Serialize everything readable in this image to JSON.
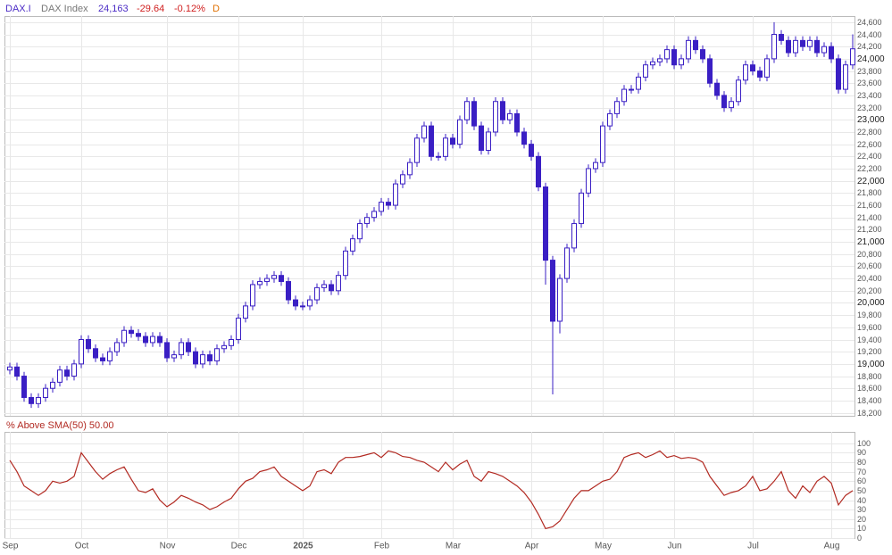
{
  "header": {
    "symbol": "DAX.I",
    "name": "DAX Index",
    "last": "24,163",
    "change": "-29.64",
    "change_pct": "-0.12%",
    "period": "D"
  },
  "chart_data": [
    {
      "type": "candlestick",
      "color": "#3a1fc4",
      "open": [
        18900,
        18950,
        18800,
        18450,
        18350,
        18450,
        18600,
        18700,
        18900,
        18800,
        19000,
        19400,
        19250,
        19100,
        19050,
        19200,
        19350,
        19550,
        19500,
        19450,
        19350,
        19450,
        19350,
        19100,
        19150,
        19350,
        19200,
        19000,
        19150,
        19050,
        19250,
        19300,
        19400,
        19750,
        19950,
        20300,
        20350,
        20400,
        20450,
        20350,
        20050,
        19950,
        19950,
        20050,
        20250,
        20300,
        20200,
        20450,
        20850,
        21050,
        21300,
        21400,
        21500,
        21650,
        21600,
        21950,
        22100,
        22300,
        22700,
        22900,
        22400,
        22400,
        22700,
        22600,
        23000,
        23300,
        22900,
        22500,
        22800,
        23300,
        23000,
        23100,
        22800,
        22600,
        22400,
        21900,
        20700,
        19700,
        20400,
        20900,
        21300,
        21800,
        22200,
        22300,
        22900,
        23100,
        23300,
        23500,
        23500,
        23700,
        23900,
        23950,
        24000,
        24150,
        23900,
        24000,
        24300,
        24150,
        24000,
        23600,
        23400,
        23200,
        23300,
        23650,
        23900,
        23800,
        23700,
        24000,
        24400,
        24300,
        24100,
        24300,
        24200,
        24300,
        24100,
        24200,
        24000,
        23500,
        23900
      ],
      "high": [
        19020,
        19020,
        18870,
        18520,
        18520,
        18670,
        18770,
        18970,
        18970,
        19070,
        19470,
        19470,
        19320,
        19170,
        19270,
        19420,
        19620,
        19620,
        19570,
        19520,
        19520,
        19520,
        19420,
        19220,
        19420,
        19420,
        19270,
        19220,
        19220,
        19320,
        19370,
        19470,
        19820,
        20020,
        20370,
        20420,
        20470,
        20520,
        20520,
        20420,
        20120,
        20020,
        20120,
        20320,
        20370,
        20370,
        20520,
        20920,
        21120,
        21370,
        21470,
        21570,
        21720,
        21720,
        22020,
        22170,
        22370,
        22770,
        22970,
        22970,
        22470,
        22770,
        22770,
        23070,
        23370,
        23370,
        22970,
        22870,
        23370,
        23370,
        23170,
        23170,
        22870,
        22670,
        22470,
        21970,
        20770,
        20470,
        20970,
        21370,
        21870,
        22270,
        22370,
        22970,
        23170,
        23370,
        23570,
        23570,
        23770,
        23970,
        24020,
        24070,
        24220,
        24220,
        24070,
        24370,
        24370,
        24220,
        24070,
        23670,
        23470,
        23370,
        23720,
        23970,
        23970,
        23870,
        24070,
        24600,
        24470,
        24370,
        24370,
        24370,
        24370,
        24370,
        24270,
        24270,
        24070,
        23970,
        24400
      ],
      "low": [
        18830,
        18730,
        18380,
        18280,
        18280,
        18380,
        18530,
        18630,
        18730,
        18730,
        18930,
        19180,
        19030,
        18980,
        18980,
        19130,
        19280,
        19430,
        19380,
        19280,
        19280,
        19280,
        19030,
        19030,
        19080,
        19130,
        18930,
        18930,
        18980,
        18980,
        19180,
        19230,
        19330,
        19680,
        19880,
        20230,
        20280,
        20330,
        20280,
        19980,
        19880,
        19880,
        19880,
        19980,
        20180,
        20130,
        20130,
        20380,
        20780,
        20980,
        21230,
        21330,
        21430,
        21530,
        21530,
        21880,
        22030,
        22230,
        22630,
        22330,
        22330,
        22330,
        22530,
        22530,
        22930,
        22830,
        22430,
        22430,
        22730,
        22930,
        22930,
        22730,
        22530,
        22330,
        21830,
        20300,
        18500,
        19500,
        20330,
        20830,
        21230,
        21730,
        22130,
        22230,
        22830,
        23030,
        23230,
        23430,
        23430,
        23630,
        23830,
        23880,
        23930,
        23830,
        23830,
        23930,
        24080,
        23930,
        23530,
        23330,
        23130,
        23130,
        23230,
        23580,
        23730,
        23630,
        23630,
        23930,
        24230,
        24030,
        24030,
        24130,
        24130,
        24030,
        24030,
        23930,
        23430,
        23430,
        23830
      ],
      "close": [
        18950,
        18800,
        18450,
        18350,
        18450,
        18600,
        18700,
        18900,
        18800,
        19000,
        19400,
        19250,
        19100,
        19050,
        19200,
        19350,
        19550,
        19500,
        19450,
        19350,
        19450,
        19350,
        19100,
        19150,
        19350,
        19200,
        19000,
        19150,
        19050,
        19250,
        19300,
        19400,
        19750,
        19950,
        20300,
        20350,
        20400,
        20450,
        20350,
        20050,
        19950,
        19950,
        20050,
        20250,
        20300,
        20200,
        20450,
        20850,
        21050,
        21300,
        21400,
        21500,
        21650,
        21600,
        21950,
        22100,
        22300,
        22700,
        22900,
        22400,
        22400,
        22700,
        22600,
        23000,
        23300,
        22900,
        22500,
        22800,
        23300,
        23000,
        23100,
        22800,
        22600,
        22400,
        21900,
        20700,
        19700,
        20400,
        20900,
        21300,
        21800,
        22200,
        22300,
        22900,
        23100,
        23300,
        23500,
        23500,
        23700,
        23900,
        23950,
        24000,
        24150,
        23900,
        24000,
        24300,
        24150,
        24000,
        23600,
        23400,
        23200,
        23300,
        23650,
        23900,
        23800,
        23700,
        24000,
        24400,
        24300,
        24100,
        24300,
        24200,
        24300,
        24100,
        24200,
        24000,
        23500,
        23900,
        24163
      ],
      "ylim": [
        18150,
        24700
      ],
      "yticks": [
        {
          "value": 18200,
          "label": "18,200"
        },
        {
          "value": 18400,
          "label": "18,400"
        },
        {
          "value": 18600,
          "label": "18,600"
        },
        {
          "value": 18800,
          "label": "18,800"
        },
        {
          "value": 19000,
          "label": "19,000"
        },
        {
          "value": 19200,
          "label": "19,200"
        },
        {
          "value": 19400,
          "label": "19,400"
        },
        {
          "value": 19600,
          "label": "19,600"
        },
        {
          "value": 19800,
          "label": "19,800"
        },
        {
          "value": 20000,
          "label": "20,000"
        },
        {
          "value": 20200,
          "label": "20,200"
        },
        {
          "value": 20400,
          "label": "20,400"
        },
        {
          "value": 20600,
          "label": "20,600"
        },
        {
          "value": 20800,
          "label": "20,800"
        },
        {
          "value": 21000,
          "label": "21,000"
        },
        {
          "value": 21200,
          "label": "21,200"
        },
        {
          "value": 21400,
          "label": "21,400"
        },
        {
          "value": 21600,
          "label": "21,600"
        },
        {
          "value": 21800,
          "label": "21,800"
        },
        {
          "value": 22000,
          "label": "22,000"
        },
        {
          "value": 22200,
          "label": "22,200"
        },
        {
          "value": 22400,
          "label": "22,400"
        },
        {
          "value": 22600,
          "label": "22,600"
        },
        {
          "value": 22800,
          "label": "22,800"
        },
        {
          "value": 23000,
          "label": "23,000"
        },
        {
          "value": 23200,
          "label": "23,200"
        },
        {
          "value": 23400,
          "label": "23,400"
        },
        {
          "value": 23600,
          "label": "23,600"
        },
        {
          "value": 23800,
          "label": "23,800"
        },
        {
          "value": 24000,
          "label": "24,000"
        },
        {
          "value": 24200,
          "label": "24,200"
        },
        {
          "value": 24400,
          "label": "24,400"
        },
        {
          "value": 24600,
          "label": "24,600"
        }
      ],
      "grid": true
    },
    {
      "type": "line",
      "title": "% Above SMA(50) 50.00",
      "color": "#b22a22",
      "categories": [
        "Sep",
        null,
        null,
        null,
        null,
        null,
        null,
        null,
        null,
        null,
        "Oct",
        null,
        null,
        null,
        null,
        null,
        null,
        null,
        null,
        null,
        null,
        null,
        "Nov",
        null,
        null,
        null,
        null,
        null,
        null,
        null,
        null,
        null,
        "Dec",
        null,
        null,
        null,
        null,
        null,
        null,
        null,
        null,
        "2025",
        null,
        null,
        null,
        null,
        null,
        null,
        null,
        null,
        null,
        null,
        "Feb",
        null,
        null,
        null,
        null,
        null,
        null,
        null,
        null,
        null,
        "Mar",
        null,
        null,
        null,
        null,
        null,
        null,
        null,
        null,
        null,
        null,
        "Apr",
        null,
        null,
        null,
        null,
        null,
        null,
        null,
        null,
        null,
        "May",
        null,
        null,
        null,
        null,
        null,
        null,
        null,
        null,
        null,
        "Jun",
        null,
        null,
        null,
        null,
        null,
        null,
        null,
        null,
        null,
        null,
        "Jul",
        null,
        null,
        null,
        null,
        null,
        null,
        null,
        null,
        null,
        null,
        "Aug",
        null,
        null,
        null
      ],
      "values": [
        82,
        70,
        55,
        50,
        45,
        50,
        60,
        58,
        60,
        65,
        90,
        80,
        70,
        62,
        68,
        72,
        75,
        62,
        50,
        48,
        52,
        40,
        33,
        38,
        45,
        42,
        38,
        35,
        30,
        33,
        38,
        42,
        52,
        60,
        63,
        70,
        72,
        75,
        65,
        60,
        55,
        50,
        55,
        70,
        72,
        68,
        80,
        85,
        85,
        86,
        88,
        90,
        85,
        92,
        90,
        86,
        85,
        82,
        80,
        75,
        70,
        80,
        72,
        78,
        82,
        65,
        60,
        70,
        68,
        65,
        60,
        55,
        48,
        38,
        25,
        10,
        12,
        18,
        30,
        42,
        50,
        50,
        55,
        60,
        62,
        70,
        85,
        88,
        90,
        85,
        88,
        92,
        85,
        87,
        84,
        85,
        84,
        80,
        65,
        55,
        45,
        48,
        50,
        55,
        65,
        50,
        52,
        60,
        70,
        50,
        42,
        55,
        48,
        60,
        65,
        58,
        35,
        45,
        50
      ],
      "ylim": [
        0,
        112
      ],
      "yticks": [
        0,
        10,
        20,
        30,
        40,
        50,
        60,
        70,
        80,
        90,
        100
      ],
      "grid": true
    }
  ]
}
